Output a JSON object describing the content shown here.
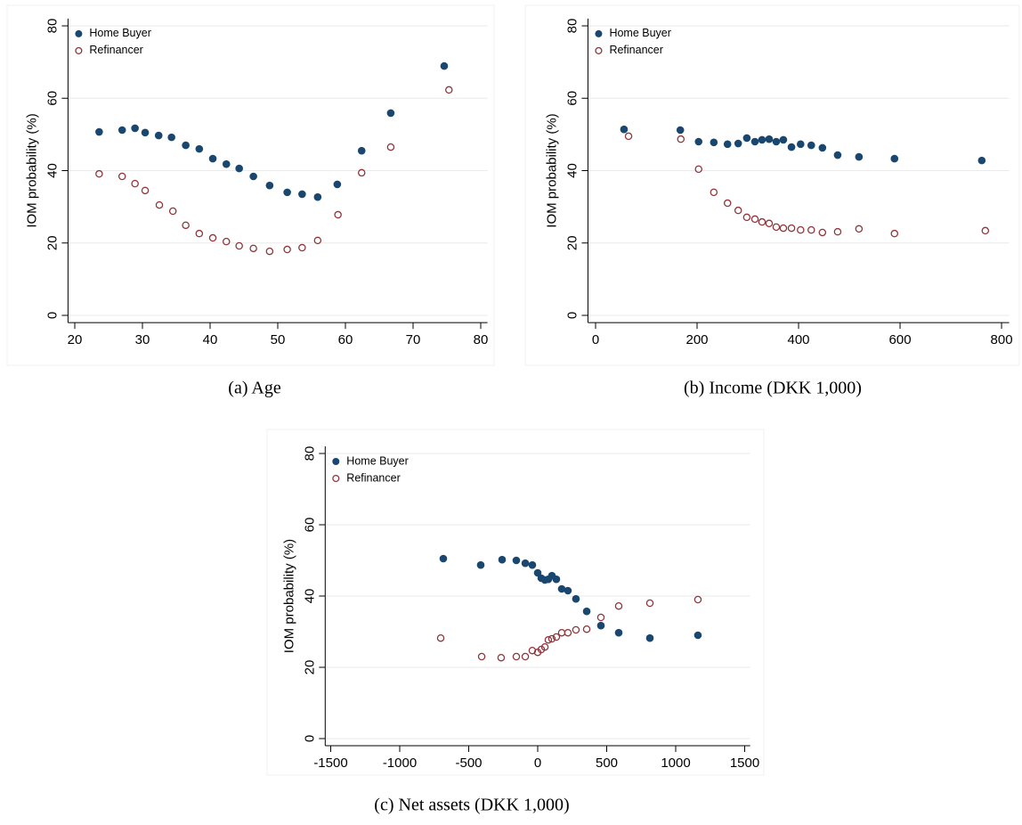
{
  "chart_data": [
    {
      "type": "scatter",
      "caption": "(a) Age",
      "ylabel": "IOM probability (%)",
      "xlim": [
        19,
        81
      ],
      "xticks": [
        20,
        30,
        40,
        50,
        60,
        70,
        80
      ],
      "ylim": [
        -2,
        82
      ],
      "yticks": [
        0,
        20,
        40,
        60,
        80
      ],
      "grid": true,
      "legend": "top-left",
      "series": [
        {
          "name": "Home Buyer",
          "color": "#1a476f",
          "filled": true,
          "x": [
            23.6,
            27.0,
            28.9,
            30.4,
            32.4,
            34.3,
            36.4,
            38.4,
            40.4,
            42.4,
            44.3,
            46.4,
            48.8,
            51.4,
            53.6,
            55.9,
            58.8,
            62.4,
            66.7,
            74.6
          ],
          "values": [
            50.7,
            51.2,
            51.7,
            50.5,
            49.7,
            49.2,
            47.0,
            46.0,
            43.3,
            41.8,
            40.6,
            38.4,
            35.9,
            34.0,
            33.5,
            32.7,
            36.2,
            45.5,
            55.9,
            68.9
          ]
        },
        {
          "name": "Refinancer",
          "color": "#90353b",
          "filled": false,
          "x": [
            23.6,
            27.0,
            28.9,
            30.4,
            32.5,
            34.5,
            36.4,
            38.4,
            40.4,
            42.4,
            44.3,
            46.4,
            48.8,
            51.4,
            53.6,
            55.9,
            58.9,
            62.4,
            66.7,
            75.3
          ],
          "values": [
            39.1,
            38.4,
            36.4,
            34.5,
            30.5,
            28.8,
            24.9,
            22.6,
            21.4,
            20.4,
            19.2,
            18.5,
            17.7,
            18.2,
            18.7,
            20.7,
            27.8,
            39.4,
            46.5,
            62.3
          ]
        }
      ]
    },
    {
      "type": "scatter",
      "caption": "(b) Income (DKK 1,000)",
      "ylabel": "IOM probability (%)",
      "xlim": [
        -15,
        815
      ],
      "xticks": [
        0,
        200,
        400,
        600,
        800
      ],
      "ylim": [
        -2,
        82
      ],
      "yticks": [
        0,
        20,
        40,
        60,
        80
      ],
      "grid": true,
      "legend": "top-left",
      "series": [
        {
          "name": "Home Buyer",
          "color": "#1a476f",
          "filled": true,
          "x": [
            56,
            167,
            203,
            233,
            260,
            281,
            298,
            314,
            328,
            342,
            356,
            370,
            386,
            404,
            425,
            447,
            477,
            519,
            589,
            761
          ],
          "values": [
            51.4,
            51.2,
            48.0,
            47.8,
            47.3,
            47.5,
            49.0,
            48.0,
            48.5,
            48.7,
            48.0,
            48.5,
            46.5,
            47.3,
            47.0,
            46.3,
            44.3,
            43.8,
            43.3,
            42.8
          ]
        },
        {
          "name": "Refinancer",
          "color": "#90353b",
          "filled": false,
          "x": [
            65,
            168,
            203,
            233,
            260,
            281,
            298,
            314,
            328,
            342,
            356,
            370,
            386,
            404,
            425,
            447,
            477,
            519,
            589,
            768
          ],
          "values": [
            49.5,
            48.7,
            40.4,
            34.0,
            31.0,
            29.0,
            27.1,
            26.6,
            25.8,
            25.4,
            24.4,
            24.1,
            24.1,
            23.6,
            23.6,
            22.9,
            23.1,
            23.9,
            22.6,
            23.4
          ]
        }
      ]
    },
    {
      "type": "scatter",
      "caption": "(c) Net assets (DKK 1,000)",
      "ylabel": "IOM probability (%)",
      "xlim": [
        -1540,
        1540
      ],
      "xticks": [
        -1500,
        -1000,
        -500,
        0,
        500,
        1000,
        1500
      ],
      "ylim": [
        -2,
        82
      ],
      "yticks": [
        0,
        20,
        40,
        60,
        80
      ],
      "grid": true,
      "legend": "top-left",
      "series": [
        {
          "name": "Home Buyer",
          "color": "#1a476f",
          "filled": true,
          "x": [
            -684,
            -413,
            -258,
            -155,
            -90,
            -39,
            0,
            26,
            52,
            77,
            103,
            135,
            174,
            219,
            277,
            355,
            458,
            587,
            813,
            1161
          ],
          "values": [
            50.5,
            48.7,
            50.2,
            50.0,
            49.2,
            48.7,
            46.5,
            45.0,
            44.5,
            44.7,
            45.7,
            44.7,
            42.0,
            41.5,
            39.2,
            35.7,
            31.7,
            29.7,
            28.2,
            29.0
          ]
        },
        {
          "name": "Refinancer",
          "color": "#90353b",
          "filled": false,
          "x": [
            -703,
            -406,
            -265,
            -155,
            -90,
            -39,
            0,
            26,
            52,
            77,
            103,
            135,
            174,
            219,
            277,
            355,
            458,
            587,
            813,
            1161
          ],
          "values": [
            28.2,
            23.0,
            22.7,
            23.0,
            23.0,
            24.7,
            24.2,
            25.0,
            25.7,
            27.7,
            28.0,
            28.5,
            29.7,
            29.7,
            30.5,
            30.7,
            34.0,
            37.2,
            38.0,
            39.0
          ]
        }
      ]
    }
  ]
}
